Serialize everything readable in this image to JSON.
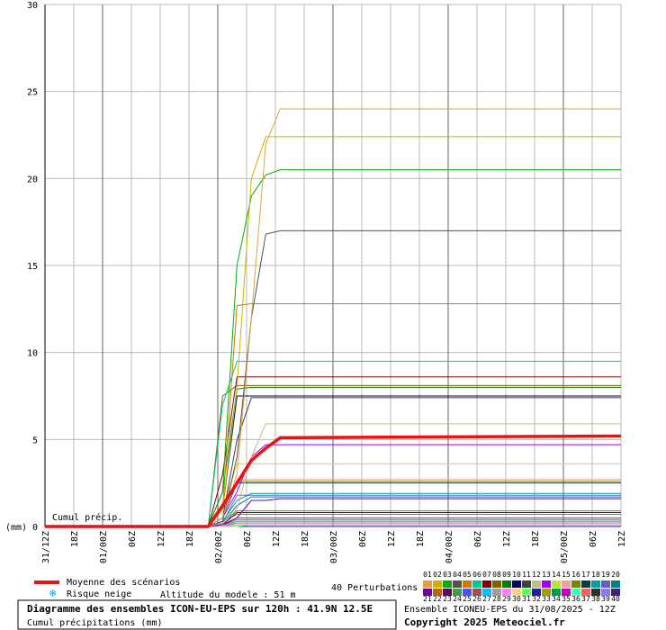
{
  "chart_data": {
    "type": "line",
    "title": "Diagramme des ensembles ICON-EU-EPS sur 120h : 41.9N 12.5E",
    "subtitle": "Cumul précipitations (mm)",
    "y_label": "(mm)",
    "annotation": "Cumul précip.",
    "run_info": "Ensemble ICONEU-EPS du 31/08/2025 - 12Z",
    "copyright": "Copyright 2025 Meteociel.fr",
    "snow_label": "Risque neige",
    "altitude": "Altitude du modele : 51 m",
    "perturbations_label": "40 Perturbations",
    "grid": true,
    "xlim": [
      0,
      120
    ],
    "ylim": [
      0,
      30
    ],
    "yticks": [
      0,
      5,
      10,
      15,
      20,
      25,
      30
    ],
    "xticks": [
      {
        "value": 0,
        "label": "31/12Z"
      },
      {
        "value": 6,
        "label": "18Z"
      },
      {
        "value": 12,
        "label": "01/00Z"
      },
      {
        "value": 18,
        "label": "06Z"
      },
      {
        "value": 24,
        "label": "12Z"
      },
      {
        "value": 30,
        "label": "18Z"
      },
      {
        "value": 36,
        "label": "02/00Z"
      },
      {
        "value": 42,
        "label": "06Z"
      },
      {
        "value": 48,
        "label": "12Z"
      },
      {
        "value": 54,
        "label": "18Z"
      },
      {
        "value": 60,
        "label": "03/00Z"
      },
      {
        "value": 66,
        "label": "06Z"
      },
      {
        "value": 72,
        "label": "12Z"
      },
      {
        "value": 78,
        "label": "18Z"
      },
      {
        "value": 84,
        "label": "04/00Z"
      },
      {
        "value": 90,
        "label": "06Z"
      },
      {
        "value": 96,
        "label": "12Z"
      },
      {
        "value": 102,
        "label": "18Z"
      },
      {
        "value": 108,
        "label": "05/00Z"
      },
      {
        "value": 114,
        "label": "06Z"
      },
      {
        "value": 120,
        "label": "12Z"
      }
    ],
    "x": [
      0,
      34,
      37,
      40,
      43,
      46,
      49,
      120
    ],
    "series": [
      {
        "name": "Moyenne des scénarios",
        "color": "#ee1111",
        "values": [
          0,
          0,
          1.2,
          2.5,
          3.8,
          4.5,
          5.1,
          5.2
        ]
      },
      {
        "name": "01",
        "color": "#e0a040",
        "values": [
          0,
          0,
          0.5,
          3,
          12,
          22,
          24,
          24
        ]
      },
      {
        "name": "02",
        "color": "#c8b400",
        "values": [
          0,
          0,
          1,
          8,
          20,
          22.4,
          22.4,
          22.4
        ]
      },
      {
        "name": "03",
        "color": "#00b000",
        "values": [
          0,
          0,
          2,
          15,
          19,
          20.2,
          20.5,
          20.5
        ]
      },
      {
        "name": "04",
        "color": "#505050",
        "values": [
          0,
          0,
          0.3,
          4,
          12,
          16.8,
          17,
          17
        ]
      },
      {
        "name": "05",
        "color": "#c87a00",
        "values": [
          0,
          0,
          1,
          12.7,
          12.8,
          12.8,
          12.8,
          12.8
        ]
      },
      {
        "name": "06",
        "color": "#00c890",
        "values": [
          0,
          0,
          7,
          9.5,
          9.5,
          9.5,
          9.5,
          9.5
        ]
      },
      {
        "name": "07",
        "color": "#800000",
        "values": [
          0,
          0,
          3,
          8.6,
          8.6,
          8.6,
          8.6,
          8.6
        ]
      },
      {
        "name": "08",
        "color": "#806000",
        "values": [
          0,
          0,
          7.5,
          8.1,
          8.1,
          8.1,
          8.1,
          8.1
        ]
      },
      {
        "name": "09",
        "color": "#008000",
        "values": [
          0,
          0,
          2,
          7.9,
          8,
          8,
          8,
          8
        ]
      },
      {
        "name": "10",
        "color": "#000060",
        "values": [
          0,
          0,
          1,
          7.5,
          7.5,
          7.5,
          7.5,
          7.5
        ]
      },
      {
        "name": "11",
        "color": "#404040",
        "values": [
          0,
          0,
          0.5,
          5,
          7.4,
          7.4,
          7.4,
          7.4
        ]
      },
      {
        "name": "12",
        "color": "#c0c080",
        "values": [
          0,
          0,
          0.2,
          1,
          4,
          5.9,
          5.9,
          5.9
        ]
      },
      {
        "name": "13",
        "color": "#a000ff",
        "values": [
          0,
          0,
          0.5,
          2,
          4,
          4.7,
          4.7,
          4.7
        ]
      },
      {
        "name": "14",
        "color": "#c0e040",
        "values": [
          0,
          0,
          1,
          3.6,
          3.6,
          3.6,
          3.6,
          3.6
        ]
      },
      {
        "name": "15",
        "color": "#f0a0a0",
        "values": [
          0,
          0,
          0.5,
          2.7,
          2.7,
          2.7,
          2.7,
          2.7
        ]
      },
      {
        "name": "16",
        "color": "#808000",
        "values": [
          0,
          0,
          1,
          2.6,
          2.6,
          2.6,
          2.6,
          2.6
        ]
      },
      {
        "name": "17",
        "color": "#004040",
        "values": [
          0,
          0,
          0.5,
          2.5,
          2.5,
          2.5,
          2.5,
          2.5
        ]
      },
      {
        "name": "18",
        "color": "#00a0a0",
        "values": [
          0,
          0,
          0.3,
          1.5,
          1.9,
          1.9,
          1.9,
          1.9
        ]
      },
      {
        "name": "19",
        "color": "#6060c0",
        "values": [
          0,
          0,
          0.2,
          1.8,
          1.8,
          1.8,
          1.8,
          1.8
        ]
      },
      {
        "name": "20",
        "color": "#008080",
        "values": [
          0,
          0,
          0.2,
          1.2,
          1.7,
          1.7,
          1.7,
          1.7
        ]
      },
      {
        "name": "21",
        "color": "#7000a0",
        "values": [
          0,
          0,
          0.1,
          0.5,
          1.5,
          1.5,
          1.6,
          1.6
        ]
      },
      {
        "name": "22",
        "color": "#c06000",
        "values": [
          0,
          0,
          0.2,
          0.9,
          0.9,
          0.9,
          0.9,
          0.9
        ]
      },
      {
        "name": "23",
        "color": "#600060",
        "values": [
          0,
          0,
          0.1,
          0.8,
          0.8,
          0.8,
          0.8,
          0.8
        ]
      },
      {
        "name": "24",
        "color": "#40a040",
        "values": [
          0,
          0,
          0.3,
          0.7,
          0.7,
          0.7,
          0.7,
          0.7
        ]
      },
      {
        "name": "25",
        "color": "#5050ff",
        "values": [
          0,
          0,
          0.1,
          0.5,
          0.5,
          0.5,
          0.5,
          0.5
        ]
      },
      {
        "name": "26",
        "color": "#a05050",
        "values": [
          0,
          0,
          0.1,
          0.4,
          0.4,
          0.4,
          0.4,
          0.4
        ]
      },
      {
        "name": "27",
        "color": "#00c0ff",
        "values": [
          0,
          0,
          0.1,
          0.3,
          0.3,
          0.3,
          0.3,
          0.3
        ]
      },
      {
        "name": "28",
        "color": "#a0a0a0",
        "values": [
          0,
          0,
          0.1,
          0.2,
          0.2,
          0.2,
          0.2,
          0.2
        ]
      },
      {
        "name": "29",
        "color": "#ff80ff",
        "values": [
          0,
          0,
          0,
          0.1,
          0.1,
          0.1,
          0.1,
          0.1
        ]
      },
      {
        "name": "30",
        "color": "#ffd080",
        "values": [
          0,
          0,
          0,
          0.1,
          0.1,
          0.1,
          0.1,
          0.1
        ]
      },
      {
        "name": "31",
        "color": "#60ff60",
        "values": [
          0,
          0,
          0,
          0,
          0.1,
          0.1,
          0.1,
          0.1
        ]
      },
      {
        "name": "32",
        "color": "#2020a0",
        "values": [
          0,
          0,
          0,
          0,
          0,
          0,
          0,
          0
        ]
      },
      {
        "name": "33",
        "color": "#a0a000",
        "values": [
          0,
          0,
          0,
          0.2,
          0.2,
          0.2,
          0.2,
          0.2
        ]
      },
      {
        "name": "34",
        "color": "#00a040",
        "values": [
          0,
          0,
          0,
          0,
          0,
          0,
          0,
          0
        ]
      },
      {
        "name": "35",
        "color": "#c000c0",
        "values": [
          0,
          0,
          0,
          0.1,
          0.1,
          0.1,
          0.1,
          0.1
        ]
      },
      {
        "name": "36",
        "color": "#40ffc0",
        "values": [
          0,
          0,
          0,
          0,
          0,
          0,
          0,
          0
        ]
      },
      {
        "name": "37",
        "color": "#ff6060",
        "values": [
          0,
          0,
          0,
          0.3,
          0.3,
          0.3,
          0.3,
          0.3
        ]
      },
      {
        "name": "38",
        "color": "#303030",
        "values": [
          0,
          0,
          0,
          0,
          0,
          0,
          0,
          0
        ]
      },
      {
        "name": "39",
        "color": "#8080ff",
        "values": [
          0,
          0,
          0.1,
          0.2,
          0.2,
          0.2,
          0.2,
          0.2
        ]
      },
      {
        "name": "40",
        "color": "#402080",
        "values": [
          0,
          0,
          0,
          0,
          0,
          0,
          0,
          0
        ]
      }
    ]
  }
}
